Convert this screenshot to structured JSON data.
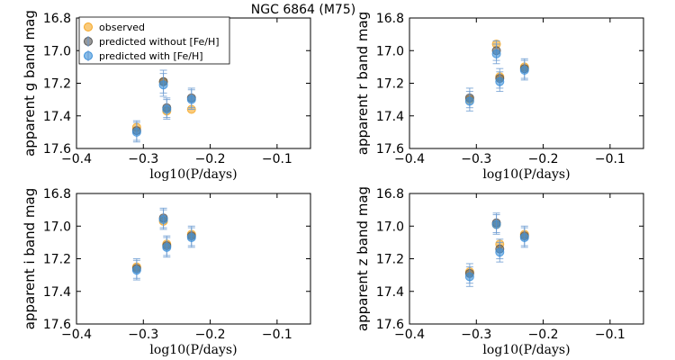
{
  "title": "NGC 6864 (M75)",
  "legend": [
    {
      "key": "observed",
      "label": "observed",
      "color": "#f5a623"
    },
    {
      "key": "pred_without",
      "label": "predicted without [Fe/H]",
      "color": "#555555"
    },
    {
      "key": "pred_with",
      "label": "predicted with [Fe/H]",
      "color": "#3a8fd9"
    }
  ],
  "colors": {
    "observed": "#f5a623",
    "pred_without": "#555555",
    "pred_with": "#3a8fd9",
    "error_bar": "#6b9bd1"
  },
  "chart_data": [
    {
      "type": "scatter",
      "band": "g",
      "title": "NGC 6864 (M75)",
      "ylabel": "apparent g band mag",
      "xlabel": "log10(P/days)",
      "xlim": [
        -0.4,
        -0.05
      ],
      "ylim": [
        17.6,
        16.8
      ],
      "xticks": [
        -0.4,
        -0.3,
        -0.2,
        -0.1
      ],
      "xtick_labels": [
        "−0.4",
        "−0.3",
        "−0.2",
        "−0.1"
      ],
      "yticks": [
        16.8,
        17.0,
        17.2,
        17.4,
        17.6
      ],
      "ytick_labels": [
        "16.8",
        "17.0",
        "17.2",
        "17.4",
        "17.6"
      ],
      "x": [
        -0.31,
        -0.27,
        -0.265,
        -0.228
      ],
      "series": [
        {
          "name": "observed",
          "values": [
            17.47,
            17.19,
            17.37,
            17.36
          ]
        },
        {
          "name": "predicted without [Fe/H]",
          "values": [
            17.49,
            17.19,
            17.35,
            17.29
          ],
          "errors": [
            0.06,
            0.07,
            0.06,
            0.06
          ]
        },
        {
          "name": "predicted with [Fe/H]",
          "values": [
            17.5,
            17.21,
            17.36,
            17.3
          ],
          "errors": [
            0.06,
            0.07,
            0.06,
            0.06
          ]
        }
      ],
      "show_legend": true
    },
    {
      "type": "scatter",
      "band": "r",
      "ylabel": "apparent r band mag",
      "xlabel": "log10(P/days)",
      "xlim": [
        -0.4,
        -0.05
      ],
      "ylim": [
        17.6,
        16.8
      ],
      "xticks": [
        -0.4,
        -0.3,
        -0.2,
        -0.1
      ],
      "xtick_labels": [
        "−0.4",
        "−0.3",
        "−0.2",
        "−0.1"
      ],
      "yticks": [
        16.8,
        17.0,
        17.2,
        17.4,
        17.6
      ],
      "ytick_labels": [
        "16.8",
        "17.0",
        "17.2",
        "17.4",
        "17.6"
      ],
      "x": [
        -0.31,
        -0.27,
        -0.265,
        -0.228
      ],
      "series": [
        {
          "name": "observed",
          "values": [
            17.3,
            16.96,
            17.16,
            17.1
          ]
        },
        {
          "name": "predicted without [Fe/H]",
          "values": [
            17.29,
            17.0,
            17.17,
            17.11
          ],
          "errors": [
            0.06,
            0.06,
            0.06,
            0.06
          ]
        },
        {
          "name": "predicted with [Fe/H]",
          "values": [
            17.31,
            17.02,
            17.19,
            17.12
          ],
          "errors": [
            0.06,
            0.06,
            0.06,
            0.06
          ]
        }
      ],
      "show_legend": false
    },
    {
      "type": "scatter",
      "band": "i",
      "ylabel": "apparent i band mag",
      "xlabel": "log10(P/days)",
      "xlim": [
        -0.4,
        -0.05
      ],
      "ylim": [
        17.6,
        16.8
      ],
      "xticks": [
        -0.4,
        -0.3,
        -0.2,
        -0.1
      ],
      "xtick_labels": [
        "−0.4",
        "−0.3",
        "−0.2",
        "−0.1"
      ],
      "yticks": [
        16.8,
        17.0,
        17.2,
        17.4,
        17.6
      ],
      "ytick_labels": [
        "16.8",
        "17.0",
        "17.2",
        "17.4",
        "17.6"
      ],
      "x": [
        -0.31,
        -0.27,
        -0.265,
        -0.228
      ],
      "series": [
        {
          "name": "observed",
          "values": [
            17.25,
            16.97,
            17.11,
            17.05
          ]
        },
        {
          "name": "predicted without [Fe/H]",
          "values": [
            17.26,
            16.95,
            17.12,
            17.06
          ],
          "errors": [
            0.06,
            0.06,
            0.06,
            0.06
          ]
        },
        {
          "name": "predicted with [Fe/H]",
          "values": [
            17.27,
            16.96,
            17.13,
            17.07
          ],
          "errors": [
            0.06,
            0.06,
            0.06,
            0.06
          ]
        }
      ],
      "show_legend": false
    },
    {
      "type": "scatter",
      "band": "z",
      "ylabel": "apparent z band mag",
      "xlabel": "log10(P/days)",
      "xlim": [
        -0.4,
        -0.05
      ],
      "ylim": [
        17.6,
        16.8
      ],
      "xticks": [
        -0.4,
        -0.3,
        -0.2,
        -0.1
      ],
      "xtick_labels": [
        "−0.4",
        "−0.3",
        "−0.2",
        "−0.1"
      ],
      "yticks": [
        16.8,
        17.0,
        17.2,
        17.4,
        17.6
      ],
      "ytick_labels": [
        "16.8",
        "17.0",
        "17.2",
        "17.4",
        "17.6"
      ],
      "x": [
        -0.31,
        -0.27,
        -0.265,
        -0.228
      ],
      "series": [
        {
          "name": "observed",
          "values": [
            17.28,
            16.99,
            17.11,
            17.05
          ]
        },
        {
          "name": "predicted without [Fe/H]",
          "values": [
            17.29,
            16.98,
            17.14,
            17.06
          ],
          "errors": [
            0.06,
            0.06,
            0.06,
            0.06
          ]
        },
        {
          "name": "predicted with [Fe/H]",
          "values": [
            17.31,
            16.99,
            17.16,
            17.07
          ],
          "errors": [
            0.06,
            0.06,
            0.06,
            0.06
          ]
        }
      ],
      "show_legend": false
    }
  ]
}
